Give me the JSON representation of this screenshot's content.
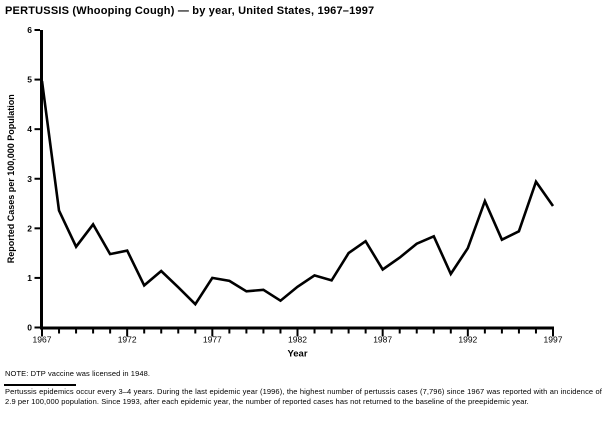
{
  "title": "PERTUSSIS (Whooping Cough) — by year, United States, 1967–1997",
  "note": "NOTE: DTP vaccine was licensed in 1948.",
  "footnote": "Pertussis epidemics occur every 3–4 years. During the last epidemic year (1996), the highest number of pertussis cases (7,796) since 1967 was reported with an incidence of 2.9 per 100,000 population. Since 1993, after each epidemic year, the number of reported cases has not returned to the baseline of the preepidemic year.",
  "chart_data": {
    "type": "line",
    "title": "PERTUSSIS (Whooping Cough) — by year, United States, 1967–1997",
    "xlabel": "Year",
    "ylabel": "Reported Cases per 100,000 Population",
    "x": [
      1967,
      1968,
      1969,
      1970,
      1971,
      1972,
      1973,
      1974,
      1975,
      1976,
      1977,
      1978,
      1979,
      1980,
      1981,
      1982,
      1983,
      1984,
      1985,
      1986,
      1987,
      1988,
      1989,
      1990,
      1991,
      1992,
      1993,
      1994,
      1995,
      1996,
      1997
    ],
    "values": [
      4.97,
      2.36,
      1.63,
      2.08,
      1.48,
      1.55,
      0.85,
      1.14,
      0.81,
      0.47,
      1.0,
      0.94,
      0.73,
      0.76,
      0.54,
      0.82,
      1.05,
      0.95,
      1.5,
      1.74,
      1.17,
      1.41,
      1.69,
      1.84,
      1.08,
      1.6,
      2.55,
      1.77,
      1.94,
      2.94,
      2.45
    ],
    "ylim": [
      0,
      6
    ],
    "yticks": [
      0,
      1,
      2,
      3,
      4,
      5,
      6
    ],
    "xticks_labeled": [
      1967,
      1972,
      1977,
      1982,
      1987,
      1992,
      1997
    ],
    "grid": false,
    "legend": "none",
    "line_color": "#000000",
    "background_color": "#ffffff"
  }
}
